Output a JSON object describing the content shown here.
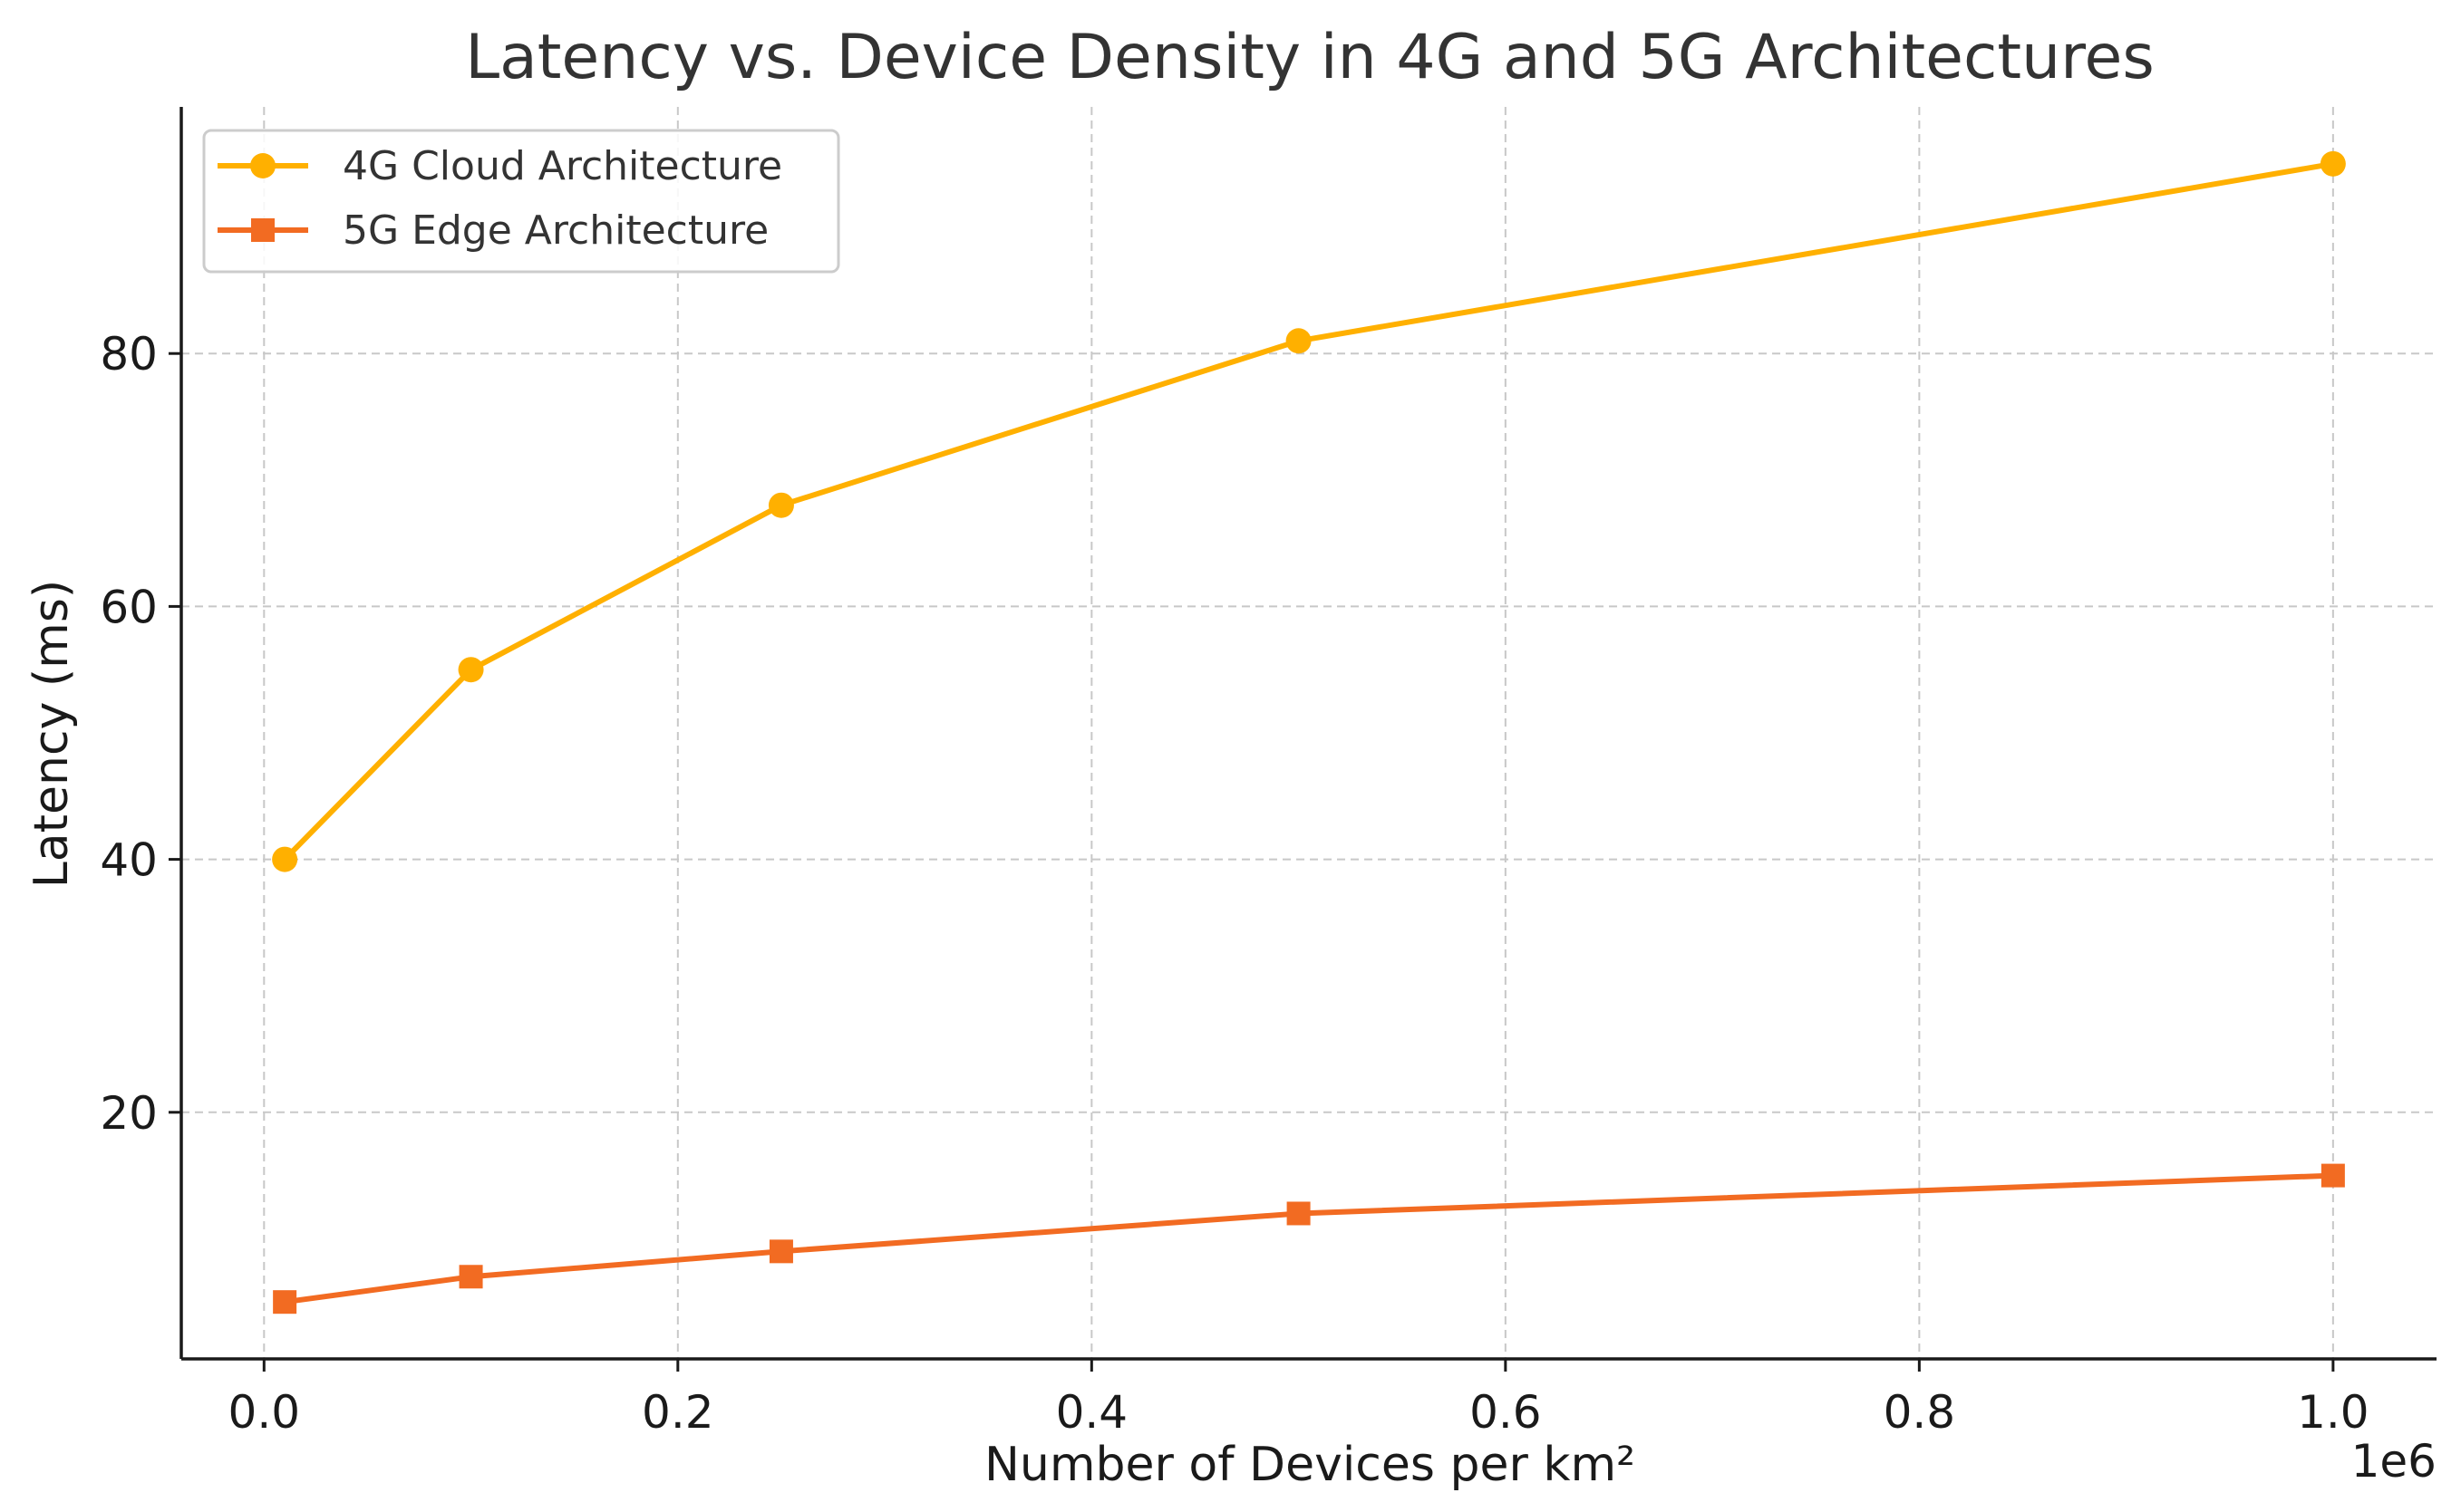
{
  "chart_data": {
    "type": "line",
    "title": "Latency vs. Device Density in 4G and 5G Architectures",
    "xlabel": "Number of Devices per km²",
    "ylabel": "Latency (ms)",
    "x_offset_label": "1e6",
    "x": [
      0.01,
      0.1,
      0.25,
      0.5,
      1.0
    ],
    "xlim": [
      -0.04,
      1.05
    ],
    "ylim": [
      0.5,
      99.5
    ],
    "xticks": [
      0.0,
      0.2,
      0.4,
      0.6,
      0.8,
      1.0
    ],
    "xtick_labels": [
      "0.0",
      "0.2",
      "0.4",
      "0.6",
      "0.8",
      "1.0"
    ],
    "yticks": [
      20,
      40,
      60,
      80
    ],
    "ytick_labels": [
      "20",
      "40",
      "60",
      "80"
    ],
    "grid": true,
    "legend_position": "top-left",
    "series": [
      {
        "name": "4G Cloud Architecture",
        "values": [
          40,
          55,
          68,
          81,
          95
        ],
        "color": "#FFB000",
        "marker": "circle"
      },
      {
        "name": "5G Edge Architecture",
        "values": [
          5,
          7,
          9,
          12,
          15
        ],
        "color": "#F26B22",
        "marker": "square"
      }
    ]
  }
}
